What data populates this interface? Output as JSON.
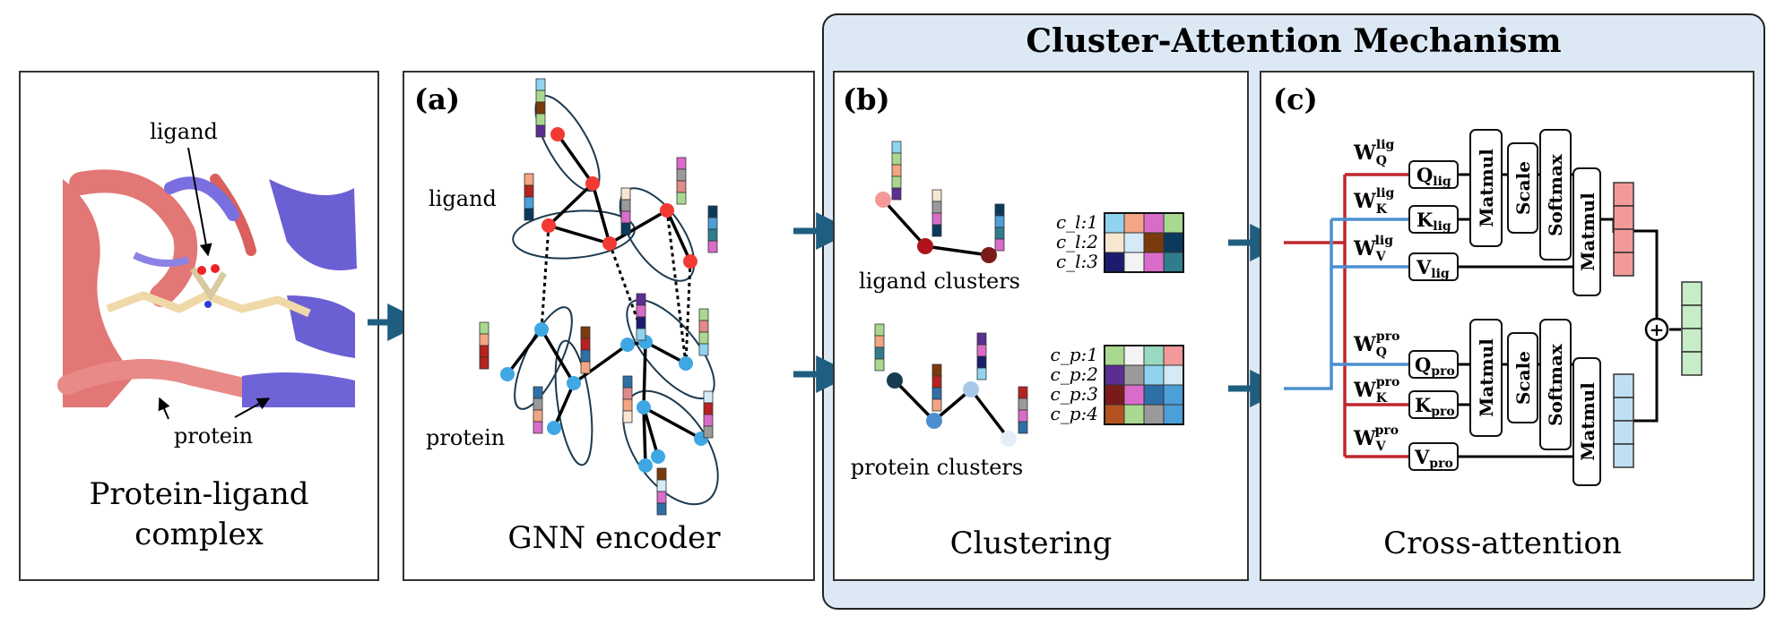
{
  "title": "Cluster-Attention Mechanism",
  "panels": {
    "complex": {
      "caption_line1": "Protein-ligand",
      "caption_line2": "complex",
      "label_ligand": "ligand",
      "label_protein": "protein"
    },
    "a": {
      "tag": "(a)",
      "caption": "GNN encoder",
      "label_ligand": "ligand",
      "label_protein": "protein"
    },
    "b": {
      "tag": "(b)",
      "caption": "Clustering",
      "ligand_clusters": "ligand clusters",
      "protein_clusters": "protein clusters",
      "cl_rows": [
        "c_l:1",
        "c_l:2",
        "c_l:3"
      ],
      "cp_rows": [
        "c_p:1",
        "c_p:2",
        "c_p:3",
        "c_p:4"
      ]
    },
    "c": {
      "tag": "(c)",
      "caption": "Cross-attention",
      "lig": {
        "wq": "W",
        "wq_sub": "Q",
        "wq_sup": "lig",
        "wk": "W",
        "wk_sub": "K",
        "wk_sup": "lig",
        "wv": "W",
        "wv_sub": "V",
        "wv_sup": "lig",
        "q": "Q",
        "q_sub": "lig",
        "k": "K",
        "k_sub": "lig",
        "v": "V",
        "v_sub": "lig"
      },
      "pro": {
        "wq": "W",
        "wq_sub": "Q",
        "wq_sup": "pro",
        "wk": "W",
        "wk_sub": "K",
        "wk_sup": "pro",
        "wv": "W",
        "wv_sub": "V",
        "wv_sup": "pro",
        "q": "Q",
        "q_sub": "pro",
        "k": "K",
        "k_sub": "pro",
        "v": "V",
        "v_sub": "pro"
      },
      "matmul": "Matmul",
      "scale": "Scale",
      "softmax": "Softmax",
      "plus": "+"
    }
  },
  "colors": {
    "outer_fill": "#dce9f5",
    "arrow": "#1f5e80",
    "red_line": "#c0262d",
    "blue_line": "#4a8fd0",
    "ligand_node": "#f23a35",
    "protein_node": "#3fa7e3"
  }
}
